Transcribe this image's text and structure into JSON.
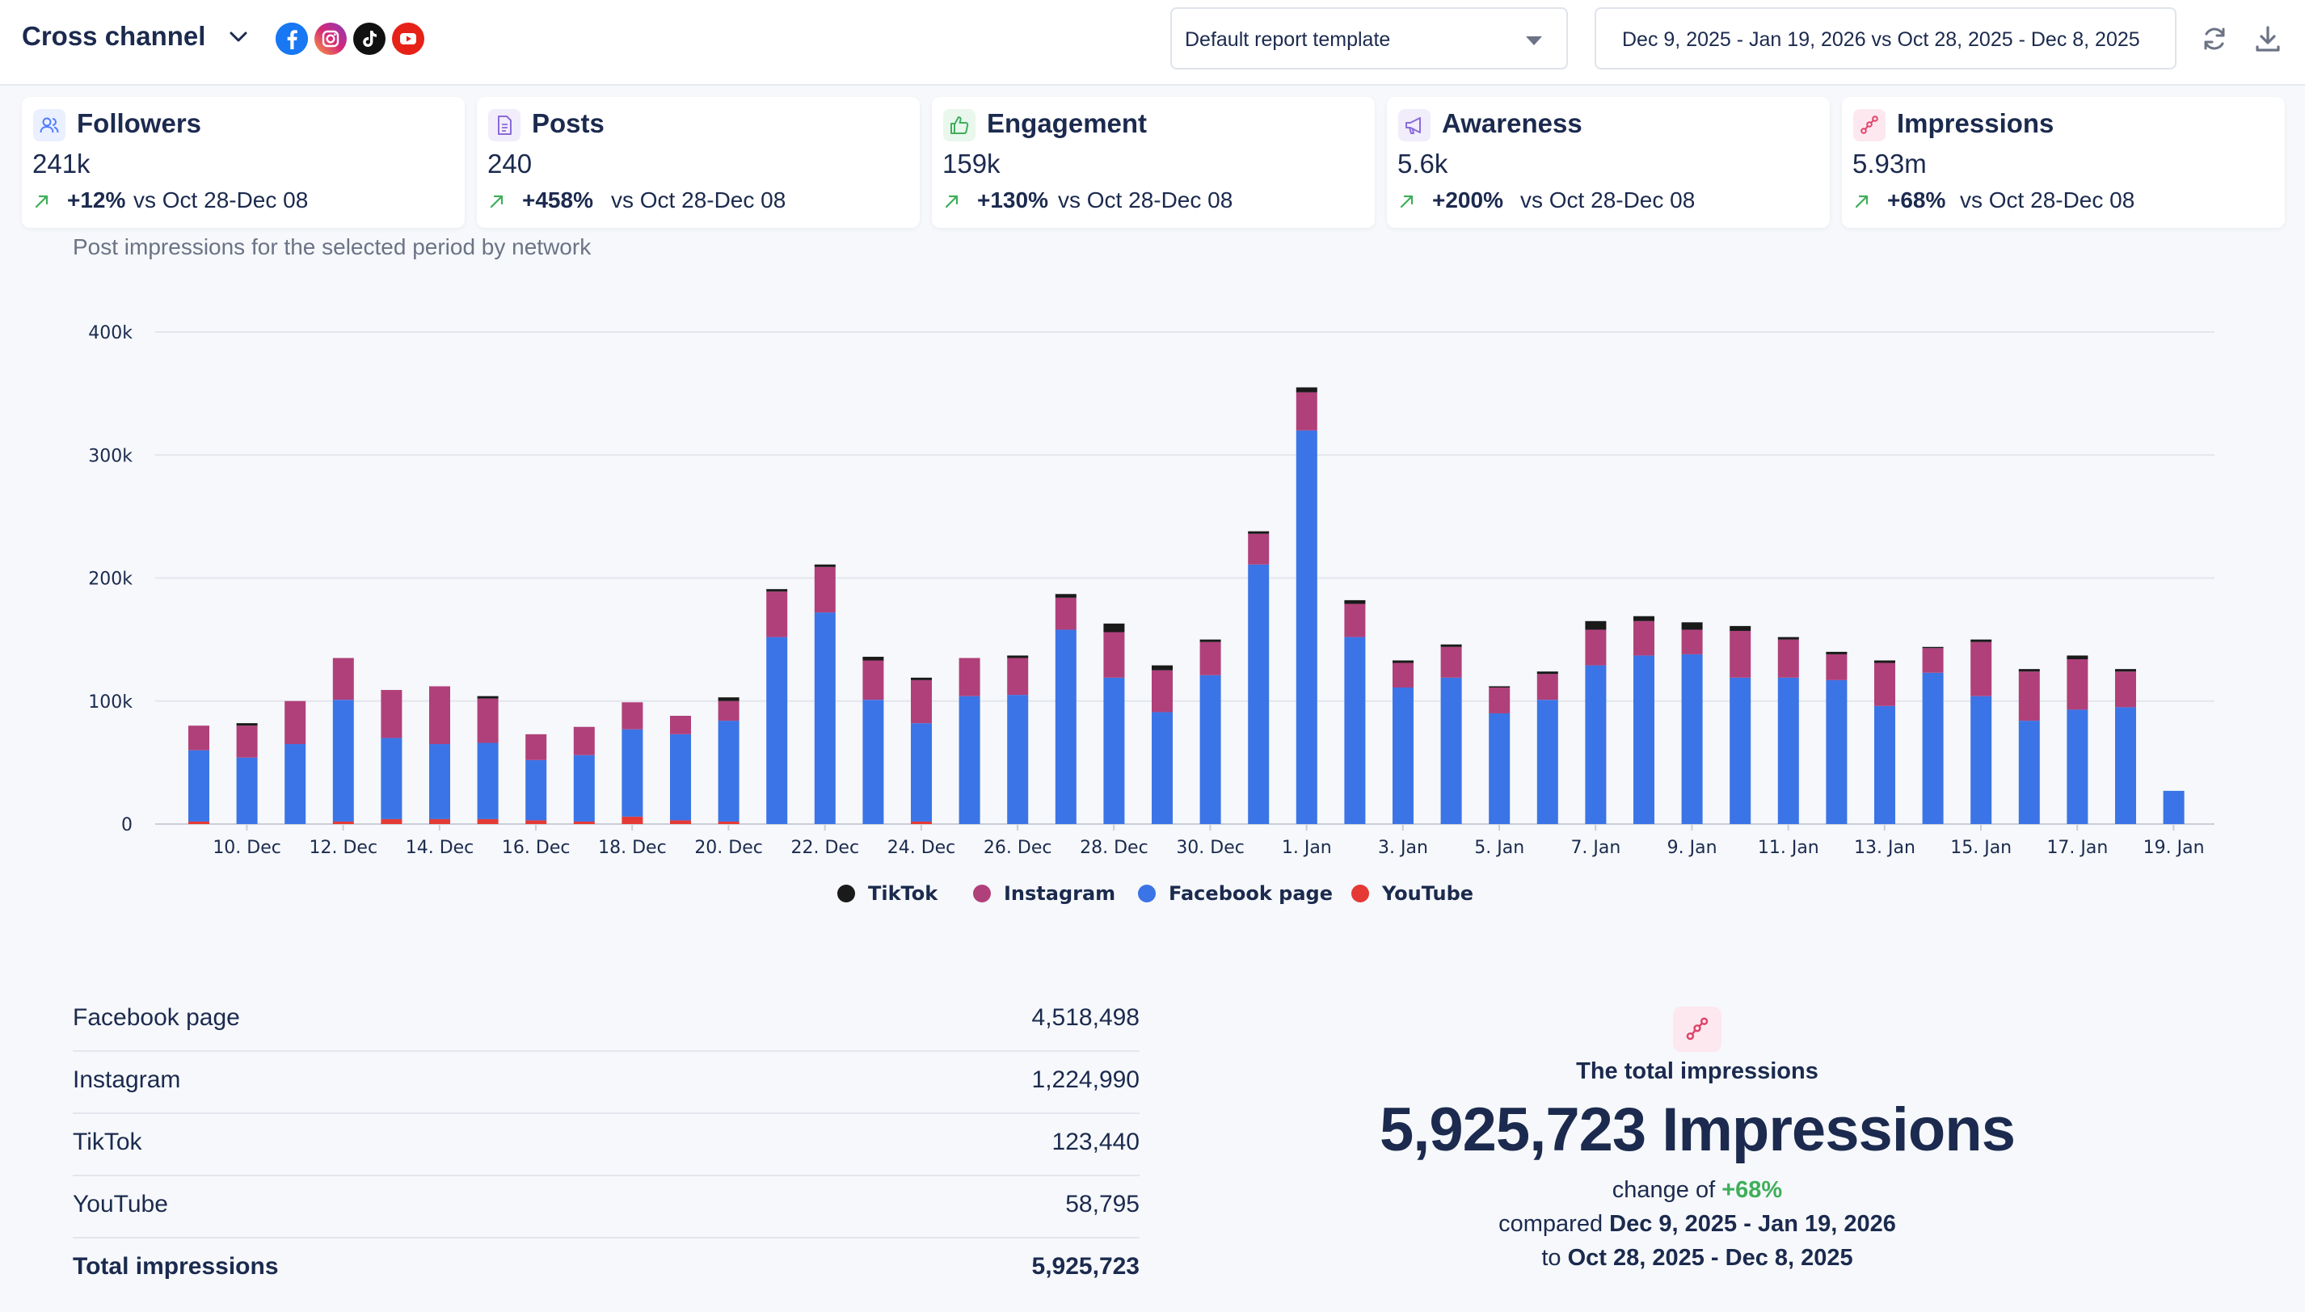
{
  "header": {
    "title": "Cross channel",
    "networks": [
      {
        "icon": "facebook-icon",
        "color": "#1877f2"
      },
      {
        "icon": "instagram-icon",
        "color": "#c13584"
      },
      {
        "icon": "tiktok-icon",
        "color": "#111111"
      },
      {
        "icon": "youtube-icon",
        "color": "#e62117"
      }
    ],
    "template_select": "Default report template",
    "date_range": "Dec 9, 2025  -  Jan 19, 2026 vs Oct 28, 2025  -  Dec 8, 2025"
  },
  "kpis": [
    {
      "title": "Followers",
      "value": "241k",
      "change": "+12%",
      "compare": "vs Oct 28-Dec 08",
      "icon": "users-icon",
      "icon_color": "#4f7cff",
      "icon_bg": "#eaf0ff"
    },
    {
      "title": "Posts",
      "value": "240",
      "change": "+458%",
      "compare": "vs Oct 28-Dec 08",
      "icon": "document-icon",
      "icon_color": "#8a6ad8",
      "icon_bg": "#f1edfb"
    },
    {
      "title": "Engagement",
      "value": "159k",
      "change": "+130%",
      "compare": "vs Oct 28-Dec 08",
      "icon": "thumbs-up-icon",
      "icon_color": "#3fae5a",
      "icon_bg": "#e9f7ed"
    },
    {
      "title": "Awareness",
      "value": "5.6k",
      "change": "+200%",
      "compare": "vs Oct 28-Dec 08",
      "icon": "megaphone-icon",
      "icon_color": "#8a6ad8",
      "icon_bg": "#f1edfb"
    },
    {
      "title": "Impressions",
      "value": "5.93m",
      "change": "+68%",
      "compare": "vs Oct 28-Dec 08",
      "icon": "share-icon",
      "icon_color": "#e0436b",
      "icon_bg": "#fce8ee"
    }
  ],
  "chart": {
    "caption": "Post impressions for the selected period by network",
    "legend": [
      {
        "name": "TikTok",
        "color": "#1a1a1a"
      },
      {
        "name": "Instagram",
        "color": "#b0407a"
      },
      {
        "name": "Facebook page",
        "color": "#3b74e6"
      },
      {
        "name": "YouTube",
        "color": "#e53935"
      }
    ]
  },
  "chart_data": {
    "type": "bar",
    "stacked": true,
    "ylim": [
      0,
      400000
    ],
    "y_ticks": [
      "0",
      "100k",
      "200k",
      "300k",
      "400k"
    ],
    "x_tick_labels": [
      "10. Dec",
      "12. Dec",
      "14. Dec",
      "16. Dec",
      "18. Dec",
      "20. Dec",
      "22. Dec",
      "24. Dec",
      "26. Dec",
      "28. Dec",
      "30. Dec",
      "1. Jan",
      "3. Jan",
      "5. Jan",
      "7. Jan",
      "9. Jan",
      "11. Jan",
      "13. Jan",
      "15. Jan",
      "17. Jan",
      "19. Jan"
    ],
    "categories": [
      "9. Dec",
      "10. Dec",
      "11. Dec",
      "12. Dec",
      "13. Dec",
      "14. Dec",
      "15. Dec",
      "16. Dec",
      "17. Dec",
      "18. Dec",
      "19. Dec",
      "20. Dec",
      "21. Dec",
      "22. Dec",
      "23. Dec",
      "24. Dec",
      "25. Dec",
      "26. Dec",
      "27. Dec",
      "28. Dec",
      "29. Dec",
      "30. Dec",
      "31. Dec",
      "1. Jan",
      "2. Jan",
      "3. Jan",
      "4. Jan",
      "5. Jan",
      "6. Jan",
      "7. Jan",
      "8. Jan",
      "9. Jan",
      "10. Jan",
      "11. Jan",
      "12. Jan",
      "13. Jan",
      "14. Jan",
      "15. Jan",
      "16. Jan",
      "17. Jan",
      "18. Jan",
      "19. Jan"
    ],
    "series": [
      {
        "name": "YouTube",
        "values": [
          2000,
          0,
          0,
          2000,
          4000,
          4000,
          4000,
          3000,
          2000,
          6000,
          3000,
          2000,
          0,
          0,
          0,
          2000,
          0,
          0,
          0,
          0,
          0,
          0,
          0,
          0,
          0,
          0,
          0,
          0,
          0,
          0,
          0,
          0,
          0,
          0,
          0,
          0,
          0,
          0,
          0,
          0,
          0,
          0
        ]
      },
      {
        "name": "Facebook page",
        "values": [
          58000,
          54000,
          65000,
          99000,
          66000,
          61000,
          62000,
          49000,
          54000,
          71000,
          70000,
          82000,
          152000,
          172000,
          101000,
          80000,
          104000,
          105000,
          158000,
          119000,
          91000,
          121000,
          211000,
          320000,
          152000,
          111000,
          119000,
          90000,
          101000,
          129000,
          137000,
          138000,
          119000,
          119000,
          117000,
          96000,
          123000,
          104000,
          84000,
          93000,
          95000,
          27000
        ]
      },
      {
        "name": "Instagram",
        "values": [
          20000,
          26000,
          35000,
          34000,
          39000,
          47000,
          36000,
          21000,
          23000,
          22000,
          15000,
          16000,
          37000,
          37000,
          32000,
          35000,
          31000,
          30000,
          26000,
          37000,
          34000,
          27000,
          25000,
          31000,
          27000,
          20000,
          25000,
          21000,
          21000,
          29000,
          28000,
          20000,
          38000,
          31000,
          21000,
          35000,
          20000,
          44000,
          40000,
          41000,
          29000,
          0
        ]
      },
      {
        "name": "TikTok",
        "values": [
          0,
          2000,
          0,
          0,
          0,
          0,
          2000,
          0,
          0,
          0,
          0,
          3000,
          2000,
          2000,
          3000,
          2000,
          0,
          2000,
          3000,
          7000,
          4000,
          2000,
          2000,
          4000,
          3000,
          2000,
          2000,
          1000,
          2000,
          7000,
          4000,
          6000,
          4000,
          2000,
          2000,
          2000,
          1000,
          2000,
          2000,
          3000,
          2000,
          0
        ]
      }
    ]
  },
  "breakdown": {
    "rows": [
      {
        "name": "Facebook page",
        "value": "4,518,498"
      },
      {
        "name": "Instagram",
        "value": "1,224,990"
      },
      {
        "name": "TikTok",
        "value": "123,440"
      },
      {
        "name": "YouTube",
        "value": "58,795"
      }
    ],
    "total": {
      "name": "Total impressions",
      "value": "5,925,723"
    }
  },
  "summary": {
    "title": "The total impressions",
    "big": "5,925,723 Impressions",
    "change_prefix": "change of",
    "change_value": "+68%",
    "compared_prefix": "compared",
    "compared_range": "Dec 9, 2025 - Jan 19, 2026",
    "to_prefix": "to",
    "to_range": "Oct 28, 2025 - Dec 8, 2025"
  }
}
